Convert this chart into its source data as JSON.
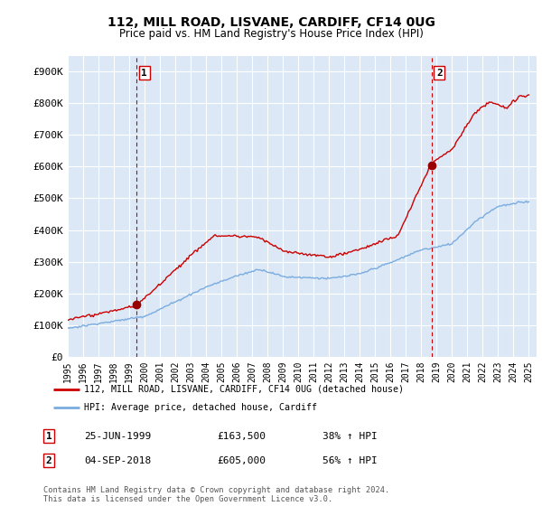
{
  "title": "112, MILL ROAD, LISVANE, CARDIFF, CF14 0UG",
  "subtitle": "Price paid vs. HM Land Registry's House Price Index (HPI)",
  "ylabel_ticks": [
    "£0",
    "£100K",
    "£200K",
    "£300K",
    "£400K",
    "£500K",
    "£600K",
    "£700K",
    "£800K",
    "£900K"
  ],
  "ytick_values": [
    0,
    100000,
    200000,
    300000,
    400000,
    500000,
    600000,
    700000,
    800000,
    900000
  ],
  "ylim": [
    0,
    950000
  ],
  "xlim_start": 1995.0,
  "xlim_end": 2025.5,
  "background_color": "#ffffff",
  "plot_background_color": "#dce8f5",
  "grid_color": "#ffffff",
  "red_line_color": "#cc0000",
  "blue_line_color": "#7aace0",
  "sale1_x": 1999.48,
  "sale1_y": 163500,
  "sale2_x": 2018.67,
  "sale2_y": 605000,
  "vline_color": "#cc0000",
  "legend_label_red": "112, MILL ROAD, LISVANE, CARDIFF, CF14 0UG (detached house)",
  "legend_label_blue": "HPI: Average price, detached house, Cardiff",
  "table_row1": [
    "1",
    "25-JUN-1999",
    "£163,500",
    "38% ↑ HPI"
  ],
  "table_row2": [
    "2",
    "04-SEP-2018",
    "£605,000",
    "56% ↑ HPI"
  ],
  "footer": "Contains HM Land Registry data © Crown copyright and database right 2024.\nThis data is licensed under the Open Government Licence v3.0.",
  "xtick_years": [
    1995,
    1996,
    1997,
    1998,
    1999,
    2000,
    2001,
    2002,
    2003,
    2004,
    2005,
    2006,
    2007,
    2008,
    2009,
    2010,
    2011,
    2012,
    2013,
    2014,
    2015,
    2016,
    2017,
    2018,
    2019,
    2020,
    2021,
    2022,
    2023,
    2024,
    2025
  ]
}
